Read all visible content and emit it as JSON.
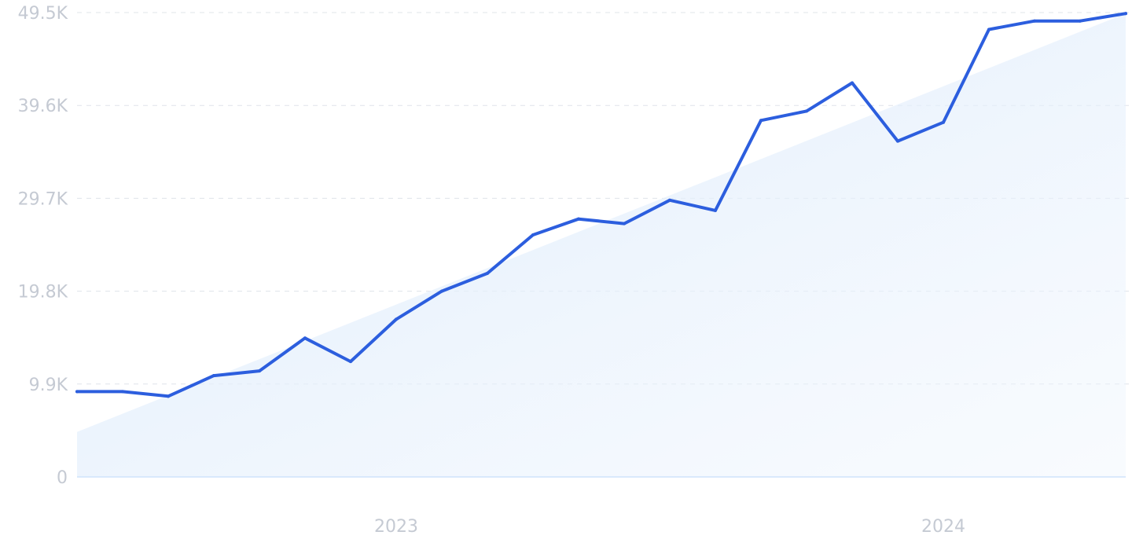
{
  "chart_data": {
    "type": "line",
    "title": "",
    "xlabel": "",
    "ylabel": "",
    "x_tick_labels": [
      {
        "label": "2023",
        "x_index": 7
      },
      {
        "label": "2024",
        "x_index": 19
      }
    ],
    "y_ticks": [
      0,
      9900,
      19800,
      29700,
      39600,
      49500
    ],
    "y_tick_labels": [
      "0",
      "9.9K",
      "19.8K",
      "29.7K",
      "39.6K",
      "49.5K"
    ],
    "ylim": [
      0,
      49500
    ],
    "grid": true,
    "legend": "none",
    "series": [
      {
        "values": [
          9100,
          9100,
          8600,
          10800,
          11300,
          14800,
          12300,
          16800,
          19800,
          21700,
          25800,
          27500,
          27000,
          29500,
          28400,
          38000,
          39000,
          42000,
          35800,
          37800,
          47700,
          48600,
          48600,
          49400
        ],
        "color": "#2c5ede"
      }
    ],
    "trend": {
      "start": 4800,
      "end": 49400,
      "fill_color": "#dbeafb"
    }
  }
}
